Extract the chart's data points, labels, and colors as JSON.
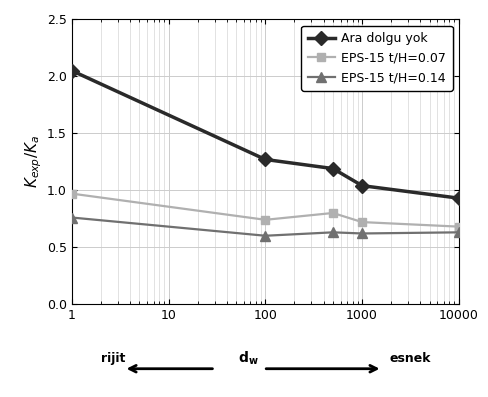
{
  "ylabel": "K_{exp}/K_a",
  "ylim": [
    0.0,
    2.5
  ],
  "yticks": [
    0.0,
    0.5,
    1.0,
    1.5,
    2.0,
    2.5
  ],
  "xlim": [
    1,
    10000
  ],
  "xticks": [
    1,
    10,
    100,
    1000,
    10000
  ],
  "series": [
    {
      "label": "Ara dolgu yok",
      "color": "#2a2a2a",
      "marker": "D",
      "markersize": 7,
      "linewidth": 2.5,
      "x_data": [
        1,
        100,
        500,
        1000,
        10000
      ],
      "y_data": [
        2.05,
        1.27,
        1.19,
        1.04,
        0.93
      ]
    },
    {
      "label": "EPS-15 t/H=0.07",
      "color": "#b0b0b0",
      "marker": "s",
      "markersize": 6,
      "linewidth": 1.6,
      "x_data": [
        1,
        100,
        500,
        1000,
        10000
      ],
      "y_data": [
        0.97,
        0.74,
        0.8,
        0.72,
        0.68
      ]
    },
    {
      "label": "EPS-15 t/H=0.14",
      "color": "#707070",
      "marker": "^",
      "markersize": 7,
      "linewidth": 1.6,
      "x_data": [
        1,
        100,
        500,
        1000,
        10000
      ],
      "y_data": [
        0.76,
        0.6,
        0.63,
        0.62,
        0.63
      ]
    }
  ],
  "background_color": "#ffffff",
  "grid_color": "#cccccc",
  "bottom_left": "rijit",
  "bottom_mid": "d_w",
  "bottom_right": "esnek"
}
